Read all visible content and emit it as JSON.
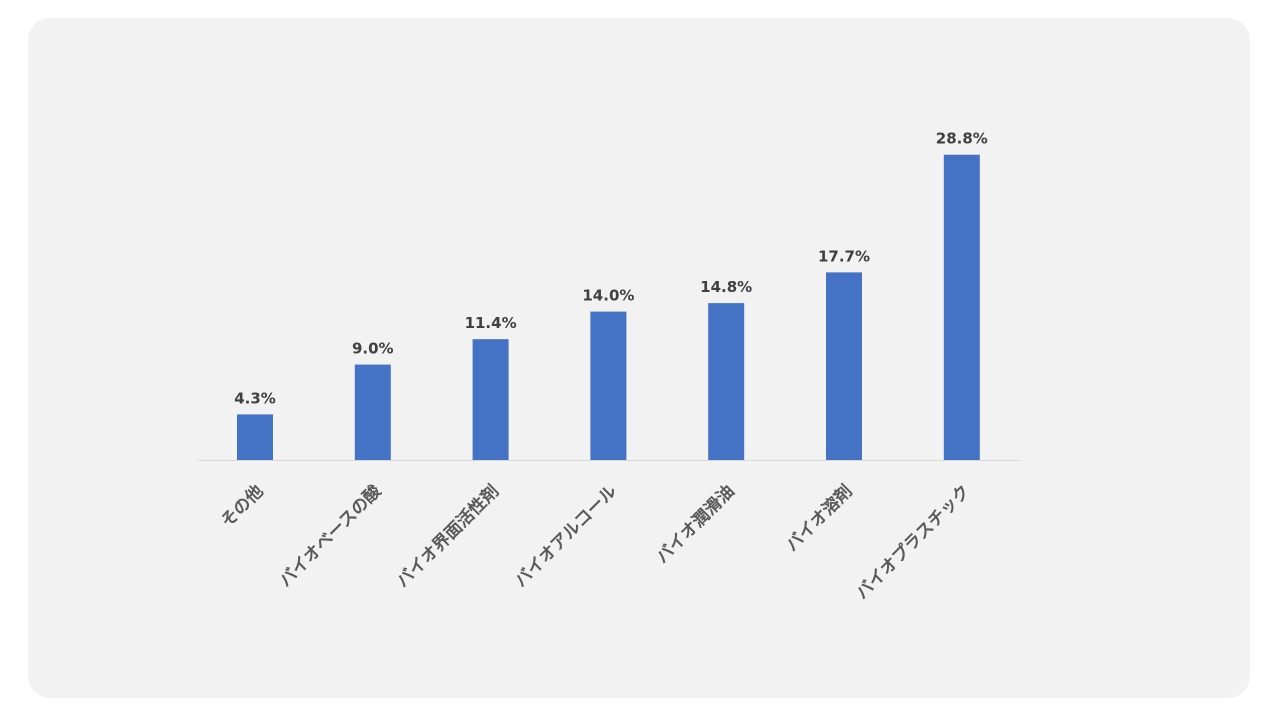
{
  "chart_data": {
    "type": "bar",
    "categories": [
      "その他",
      "バイオベースの酸",
      "バイオ界面活性剤",
      "バイオアルコール",
      "バイオ潤滑油",
      "バイオ溶剤",
      "バイオプラスチック"
    ],
    "values": [
      4.3,
      9.0,
      11.4,
      14.0,
      14.8,
      17.7,
      28.8
    ],
    "value_labels": [
      "4.3%",
      "9.0%",
      "11.4%",
      "14.0%",
      "14.8%",
      "17.7%",
      "28.8%"
    ],
    "ylim": [
      0,
      30
    ],
    "grid": false,
    "legend": "none",
    "bar_color": "#4472c4",
    "axis_color": "#d9d9d9",
    "background": "#f2f2f2"
  }
}
